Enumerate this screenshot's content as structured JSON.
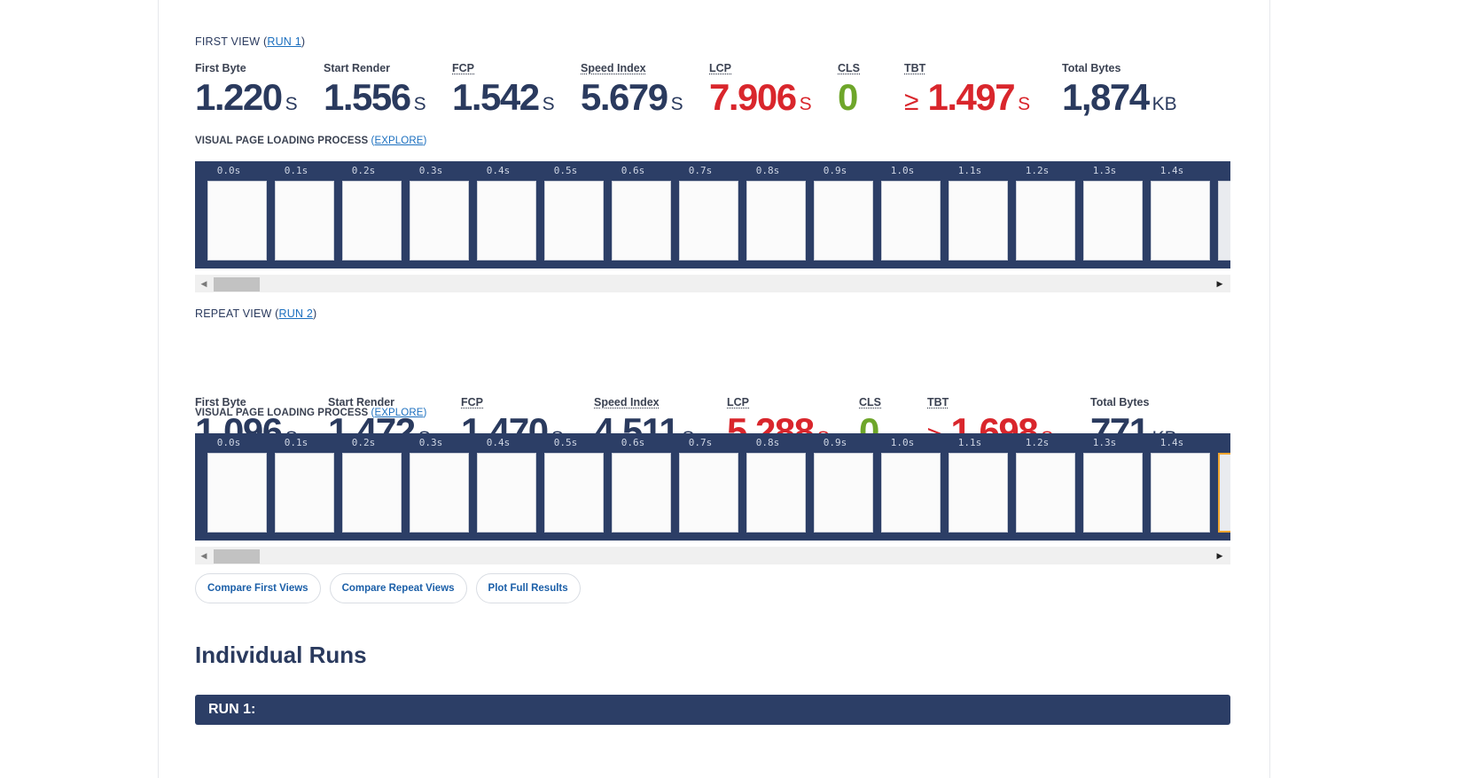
{
  "first_view": {
    "title_prefix": "FIRST VIEW (",
    "run_link": "RUN 1",
    "title_suffix": ")",
    "metrics": {
      "first_byte": {
        "label": "First Byte",
        "value": "1.220",
        "unit": "S"
      },
      "start_render": {
        "label": "Start Render",
        "value": "1.556",
        "unit": "S"
      },
      "fcp": {
        "label": "FCP",
        "value": "1.542",
        "unit": "S"
      },
      "speed_index": {
        "label": "Speed Index",
        "value": "5.679",
        "unit": "S"
      },
      "lcp": {
        "label": "LCP",
        "value": "7.906",
        "unit": "S"
      },
      "cls": {
        "label": "CLS",
        "value": "0"
      },
      "tbt": {
        "label": "TBT",
        "prefix": "≥",
        "value": "1.497",
        "unit": "S"
      },
      "total_bytes": {
        "label": "Total Bytes",
        "value": "1,874",
        "unit": "KB"
      }
    },
    "vpl_title": "VISUAL PAGE LOADING PROCESS",
    "explore": "EXPLORE"
  },
  "repeat_view": {
    "title_prefix": "REPEAT VIEW (",
    "run_link": "RUN 2",
    "title_suffix": ")",
    "metrics": {
      "first_byte": {
        "label": "First Byte",
        "value": "1.096",
        "unit": "S"
      },
      "start_render": {
        "label": "Start Render",
        "value": "1.472",
        "unit": "S"
      },
      "fcp": {
        "label": "FCP",
        "value": "1.470",
        "unit": "S"
      },
      "speed_index": {
        "label": "Speed Index",
        "value": "4.511",
        "unit": "S"
      },
      "lcp": {
        "label": "LCP",
        "value": "5.288",
        "unit": "S"
      },
      "cls": {
        "label": "CLS",
        "value": "0"
      },
      "tbt": {
        "label": "TBT",
        "prefix": "≥",
        "value": "1.698",
        "unit": "S"
      },
      "total_bytes": {
        "label": "Total Bytes",
        "value": "771",
        "unit": "KB"
      }
    },
    "vpl_title": "VISUAL PAGE LOADING PROCESS",
    "explore": "EXPLORE"
  },
  "frame_times": [
    "0.0s",
    "0.1s",
    "0.2s",
    "0.3s",
    "0.4s",
    "0.5s",
    "0.6s",
    "0.7s",
    "0.8s",
    "0.9s",
    "1.0s",
    "1.1s",
    "1.2s",
    "1.3s",
    "1.4s"
  ],
  "buttons": {
    "compare_first": "Compare First Views",
    "compare_repeat": "Compare Repeat Views",
    "plot_full": "Plot Full Results"
  },
  "individual_runs": {
    "heading": "Individual Runs",
    "run1_label": "RUN 1:"
  },
  "colors": {
    "navy": "#2c3e66",
    "text": "#2a3a5e",
    "red": "#d9262c",
    "green": "#6ea62a",
    "link": "#1b6fbf"
  }
}
